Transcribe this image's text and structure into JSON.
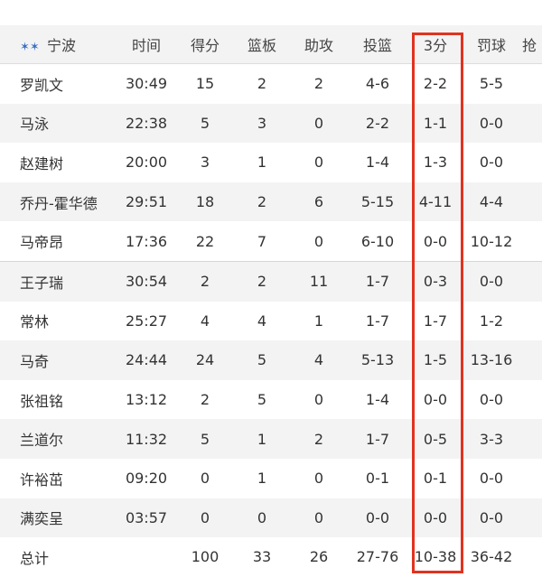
{
  "header": {
    "team": "宁波",
    "team_icon": "team-logo-icon",
    "columns": [
      "时间",
      "得分",
      "篮板",
      "助攻",
      "投篮",
      "3分",
      "罚球",
      "抢"
    ]
  },
  "rows": [
    [
      "罗凯文",
      "30:49",
      "15",
      "2",
      "2",
      "4-6",
      "2-2",
      "5-5"
    ],
    [
      "马泳",
      "22:38",
      "5",
      "3",
      "0",
      "2-2",
      "1-1",
      "0-0"
    ],
    [
      "赵建树",
      "20:00",
      "3",
      "1",
      "0",
      "1-4",
      "1-3",
      "0-0"
    ],
    [
      "乔丹-霍华德",
      "29:51",
      "18",
      "2",
      "6",
      "5-15",
      "4-11",
      "4-4"
    ],
    [
      "马帝昂",
      "17:36",
      "22",
      "7",
      "0",
      "6-10",
      "0-0",
      "10-12"
    ],
    [
      "王子瑞",
      "30:54",
      "2",
      "2",
      "11",
      "1-7",
      "0-3",
      "0-0"
    ],
    [
      "常林",
      "25:27",
      "4",
      "4",
      "1",
      "1-7",
      "1-7",
      "1-2"
    ],
    [
      "马奇",
      "24:44",
      "24",
      "5",
      "4",
      "5-13",
      "1-5",
      "13-16"
    ],
    [
      "张祖铭",
      "13:12",
      "2",
      "5",
      "0",
      "1-4",
      "0-0",
      "0-0"
    ],
    [
      "兰道尔",
      "11:32",
      "5",
      "1",
      "2",
      "1-7",
      "0-5",
      "3-3"
    ],
    [
      "许裕茁",
      "09:20",
      "0",
      "1",
      "0",
      "0-1",
      "0-1",
      "0-0"
    ],
    [
      "满奕呈",
      "03:57",
      "0",
      "0",
      "0",
      "0-0",
      "0-0",
      "0-0"
    ]
  ],
  "total": [
    "总计",
    "",
    "100",
    "33",
    "26",
    "27-76",
    "10-38",
    "36-42"
  ],
  "highlight_color": "#e0331f"
}
